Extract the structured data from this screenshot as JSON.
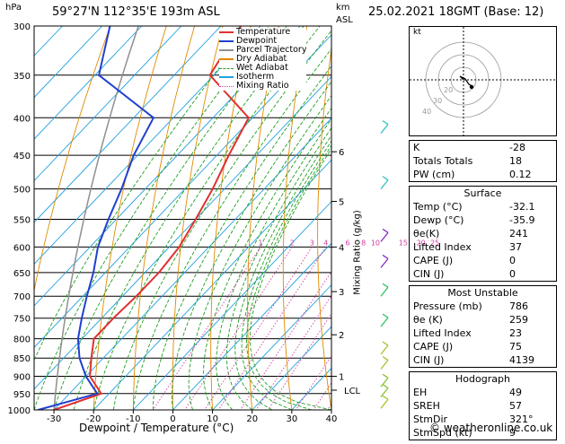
{
  "header": {
    "left_unit": "hPa",
    "location": "59°27'N  112°35'E  193m  ASL",
    "km_label": "km",
    "asl_label": "ASL",
    "datetime": "25.02.2021  18GMT  (Base: 12)"
  },
  "xlabel": "Dewpoint / Temperature (°C)",
  "mixing_axis_label": "Mixing Ratio (g/kg)",
  "credit": "© weatheronline.co.uk",
  "legend": [
    {
      "label": "Temperature",
      "color": "#e03030"
    },
    {
      "label": "Dewpoint",
      "color": "#2040d0"
    },
    {
      "label": "Parcel Trajectory",
      "color": "#909090"
    },
    {
      "label": "Dry Adiabat",
      "color": "#e08a00"
    },
    {
      "label": "Wet Adiabat",
      "color": "#20a020"
    },
    {
      "label": "Isotherm",
      "color": "#20a0e0"
    },
    {
      "label": "Mixing Ratio",
      "color": "#d040a0"
    }
  ],
  "chart_data": {
    "type": "line",
    "title": "Skew-T log-P diagram",
    "pressure_levels": [
      300,
      350,
      400,
      450,
      500,
      550,
      600,
      650,
      700,
      750,
      800,
      850,
      900,
      950,
      1000
    ],
    "x_ticks": [
      -30,
      -20,
      -10,
      0,
      10,
      20,
      30,
      40
    ],
    "xlim": [
      -35,
      40
    ],
    "ylim": [
      1000,
      300
    ],
    "km_ticks": [
      {
        "km": 1,
        "p": 900
      },
      {
        "km": 2,
        "p": 790
      },
      {
        "km": 3,
        "p": 690
      },
      {
        "km": 4,
        "p": 600
      },
      {
        "km": 5,
        "p": 520
      },
      {
        "km": 6,
        "p": 445
      }
    ],
    "lcl": {
      "label": "LCL",
      "p": 940
    },
    "mixing_ratios": [
      "1",
      "2",
      "3",
      "4",
      "6",
      "8",
      "10",
      "15",
      "20",
      "25"
    ],
    "series": [
      {
        "name": "Temperature",
        "points": [
          [
            1000,
            -30
          ],
          [
            950,
            -22
          ],
          [
            900,
            -29
          ],
          [
            850,
            -33
          ],
          [
            800,
            -37
          ],
          [
            750,
            -37
          ],
          [
            700,
            -36.5
          ],
          [
            650,
            -36.5
          ],
          [
            600,
            -37.5
          ],
          [
            550,
            -40
          ],
          [
            500,
            -43
          ],
          [
            450,
            -47
          ],
          [
            400,
            -51
          ],
          [
            350,
            -71
          ],
          [
            300,
            -75
          ]
        ]
      },
      {
        "name": "Dewpoint",
        "points": [
          [
            1000,
            -34
          ],
          [
            950,
            -23
          ],
          [
            900,
            -30
          ],
          [
            850,
            -36
          ],
          [
            800,
            -41
          ],
          [
            750,
            -45
          ],
          [
            700,
            -49
          ],
          [
            650,
            -53
          ],
          [
            600,
            -58
          ],
          [
            550,
            -62
          ],
          [
            500,
            -66
          ],
          [
            450,
            -71
          ],
          [
            400,
            -75
          ],
          [
            350,
            -99
          ],
          [
            300,
            -108
          ]
        ]
      }
    ]
  },
  "hodograph": {
    "label": "kt",
    "ring_labels": [
      "20",
      "30",
      "40"
    ]
  },
  "indices": [
    {
      "label": "K",
      "value": "-28"
    },
    {
      "label": "Totals Totals",
      "value": "18"
    },
    {
      "label": "PW (cm)",
      "value": "0.12"
    }
  ],
  "surface": {
    "title": "Surface",
    "rows": [
      {
        "label": "Temp (°C)",
        "value": "-32.1"
      },
      {
        "label": "Dewp (°C)",
        "value": "-35.9"
      },
      {
        "label": "θe(K)",
        "value": "241"
      },
      {
        "label": "Lifted Index",
        "value": "37"
      },
      {
        "label": "CAPE (J)",
        "value": "0"
      },
      {
        "label": "CIN (J)",
        "value": "0"
      }
    ]
  },
  "most_unstable": {
    "title": "Most Unstable",
    "rows": [
      {
        "label": "Pressure (mb)",
        "value": "786"
      },
      {
        "label": "θe (K)",
        "value": "259"
      },
      {
        "label": "Lifted Index",
        "value": "23"
      },
      {
        "label": "CAPE (J)",
        "value": "75"
      },
      {
        "label": "CIN (J)",
        "value": "4139"
      }
    ]
  },
  "hodograph_table": {
    "title": "Hodograph",
    "rows": [
      {
        "label": "EH",
        "value": "49"
      },
      {
        "label": "SREH",
        "value": "57"
      },
      {
        "label": "StmDir",
        "value": "321°"
      },
      {
        "label": "StmSpd (kt)",
        "value": "9"
      }
    ]
  }
}
